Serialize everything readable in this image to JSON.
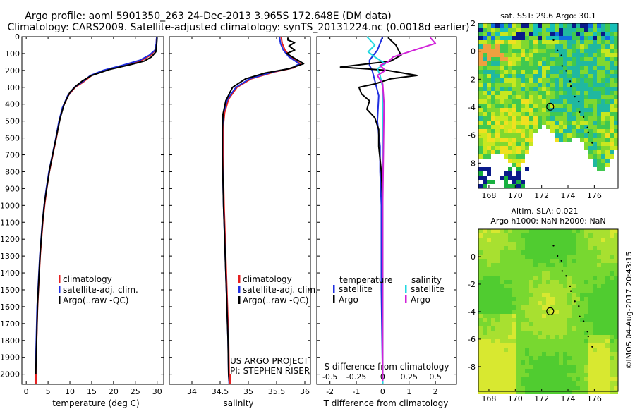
{
  "header": {
    "line1": "Argo profile: aoml 5901350_263 24-Dec-2013 3.965S 172.648E (DM data)",
    "line2": "Climatology: CARS2009. Satellite-adjusted climatology: synTS_20131224.nc (0.0018d earlier)"
  },
  "colors": {
    "climatology": "#e52020",
    "satellite": "#1f2fe0",
    "argo": "#000000",
    "cyan": "#22d8e0",
    "magenta": "#d021d8"
  },
  "chart_data": [
    {
      "type": "line",
      "id": "temperature",
      "xlabel": "temperature (deg C)",
      "xlim": [
        -1,
        31.5
      ],
      "ylim": [
        2060,
        0
      ],
      "xticks": [
        0,
        5,
        10,
        15,
        20,
        25,
        30
      ],
      "yticks": [
        0,
        100,
        200,
        300,
        400,
        500,
        600,
        700,
        800,
        900,
        1000,
        1100,
        1200,
        1300,
        1400,
        1500,
        1600,
        1700,
        1800,
        1900,
        2000
      ],
      "legend": [
        "climatology",
        "satellite-adj. clim.",
        "Argo(..raw -QC)"
      ],
      "series": [
        {
          "name": "climatology",
          "color": "#e52020",
          "points": [
            [
              29.9,
              0
            ],
            [
              29.8,
              40
            ],
            [
              29.6,
              80
            ],
            [
              28.5,
              110
            ],
            [
              26.5,
              140
            ],
            [
              22.5,
              170
            ],
            [
              18,
              200
            ],
            [
              15,
              230
            ],
            [
              13,
              270
            ],
            [
              11.2,
              300
            ],
            [
              9.6,
              350
            ],
            [
              8.4,
              420
            ],
            [
              7.6,
              500
            ],
            [
              6.9,
              600
            ],
            [
              6.1,
              700
            ],
            [
              5.3,
              800
            ],
            [
              4.7,
              900
            ],
            [
              4.2,
              1000
            ],
            [
              3.8,
              1100
            ],
            [
              3.5,
              1200
            ],
            [
              3.2,
              1300
            ],
            [
              3,
              1400
            ],
            [
              2.8,
              1500
            ],
            [
              2.6,
              1600
            ],
            [
              2.5,
              1700
            ],
            [
              2.4,
              1800
            ],
            [
              2.3,
              1900
            ],
            [
              2.2,
              2000
            ],
            [
              2.15,
              2060
            ]
          ]
        },
        {
          "name": "satellite-adj. clim.",
          "color": "#1f2fe0",
          "points": [
            [
              29.9,
              0
            ],
            [
              29.8,
              40
            ],
            [
              29.5,
              80
            ],
            [
              28.2,
              110
            ],
            [
              26,
              140
            ],
            [
              22,
              170
            ],
            [
              17.6,
              200
            ],
            [
              14.7,
              230
            ],
            [
              12.8,
              270
            ],
            [
              11,
              300
            ],
            [
              9.5,
              350
            ],
            [
              8.3,
              420
            ],
            [
              7.5,
              500
            ],
            [
              6.8,
              600
            ],
            [
              6,
              700
            ],
            [
              5.2,
              800
            ],
            [
              4.6,
              900
            ],
            [
              4.1,
              1000
            ],
            [
              3.7,
              1100
            ],
            [
              3.4,
              1200
            ],
            [
              3.1,
              1300
            ],
            [
              2.9,
              1400
            ],
            [
              2.7,
              1500
            ],
            [
              2.5,
              1600
            ],
            [
              2.4,
              1700
            ],
            [
              2.3,
              1800
            ],
            [
              2.2,
              1900
            ],
            [
              2.15,
              2000
            ],
            [
              2.1,
              2060
            ]
          ]
        },
        {
          "name": "Argo(..raw -QC)",
          "color": "#000000",
          "points": [
            [
              30,
              5
            ],
            [
              29.9,
              40
            ],
            [
              29.7,
              90
            ],
            [
              28.7,
              120
            ],
            [
              27,
              145
            ],
            [
              24,
              165
            ],
            [
              19,
              195
            ],
            [
              15,
              230
            ],
            [
              13,
              260
            ],
            [
              11.5,
              290
            ],
            [
              10,
              330
            ],
            [
              8.7,
              400
            ],
            [
              7.8,
              480
            ],
            [
              7,
              580
            ],
            [
              6.2,
              680
            ],
            [
              5.4,
              780
            ],
            [
              4.8,
              880
            ],
            [
              4.2,
              980
            ],
            [
              3.8,
              1080
            ],
            [
              3.5,
              1180
            ],
            [
              3.2,
              1280
            ],
            [
              3,
              1380
            ],
            [
              2.8,
              1480
            ],
            [
              2.6,
              1580
            ],
            [
              2.5,
              1680
            ],
            [
              2.4,
              1780
            ],
            [
              2.3,
              1880
            ],
            [
              2.2,
              1980
            ],
            [
              2.2,
              2040
            ]
          ]
        }
      ]
    },
    {
      "type": "line",
      "id": "salinity",
      "xlabel": "salinity",
      "xlim": [
        33.6,
        36.1
      ],
      "ylim": [
        2060,
        0
      ],
      "xticks": [
        34,
        34.5,
        35,
        35.5,
        36
      ],
      "legend": [
        "climatology",
        "satellite-adj. clim.",
        "Argo(..raw -QC)"
      ],
      "annotations": [
        "US ARGO PROJECT",
        "PI: STEPHEN RISER"
      ],
      "series": [
        {
          "name": "climatology",
          "color": "#e52020",
          "points": [
            [
              35.58,
              0
            ],
            [
              35.6,
              40
            ],
            [
              35.65,
              80
            ],
            [
              35.75,
              120
            ],
            [
              35.92,
              160
            ],
            [
              35.8,
              185
            ],
            [
              35.45,
              210
            ],
            [
              35.05,
              250
            ],
            [
              34.8,
              300
            ],
            [
              34.65,
              370
            ],
            [
              34.58,
              450
            ],
            [
              34.55,
              550
            ],
            [
              34.55,
              700
            ],
            [
              34.56,
              850
            ],
            [
              34.57,
              1000
            ],
            [
              34.59,
              1200
            ],
            [
              34.61,
              1400
            ],
            [
              34.63,
              1600
            ],
            [
              34.65,
              1800
            ],
            [
              34.66,
              2000
            ],
            [
              34.67,
              2060
            ]
          ]
        },
        {
          "name": "satellite-adj. clim.",
          "color": "#1f2fe0",
          "points": [
            [
              35.55,
              0
            ],
            [
              35.57,
              40
            ],
            [
              35.62,
              80
            ],
            [
              35.72,
              120
            ],
            [
              35.9,
              160
            ],
            [
              35.78,
              185
            ],
            [
              35.42,
              210
            ],
            [
              35.02,
              250
            ],
            [
              34.78,
              300
            ],
            [
              34.63,
              370
            ],
            [
              34.56,
              450
            ],
            [
              34.54,
              550
            ],
            [
              34.54,
              700
            ],
            [
              34.55,
              850
            ],
            [
              34.56,
              1000
            ],
            [
              34.58,
              1200
            ],
            [
              34.6,
              1400
            ],
            [
              34.62,
              1600
            ],
            [
              34.64,
              1800
            ],
            [
              34.65,
              2000
            ],
            [
              34.66,
              2060
            ]
          ]
        },
        {
          "name": "Argo(..raw -QC)",
          "color": "#000000",
          "points": [
            [
              35.7,
              5
            ],
            [
              35.7,
              20
            ],
            [
              35.82,
              35
            ],
            [
              35.72,
              55
            ],
            [
              35.82,
              80
            ],
            [
              35.68,
              100
            ],
            [
              35.8,
              125
            ],
            [
              35.98,
              160
            ],
            [
              35.72,
              190
            ],
            [
              35.3,
              215
            ],
            [
              34.95,
              250
            ],
            [
              34.72,
              300
            ],
            [
              34.6,
              380
            ],
            [
              34.55,
              460
            ],
            [
              34.54,
              560
            ],
            [
              34.54,
              700
            ],
            [
              34.55,
              850
            ],
            [
              34.56,
              1000
            ],
            [
              34.58,
              1200
            ],
            [
              34.6,
              1400
            ],
            [
              34.62,
              1600
            ],
            [
              34.64,
              1800
            ],
            [
              34.65,
              2000
            ],
            [
              34.66,
              2040
            ]
          ]
        }
      ]
    },
    {
      "type": "line",
      "id": "differences",
      "xlabel": "T difference from climatology",
      "xlabel_top": "S difference from climatology",
      "xlim": [
        -2.5,
        2.8
      ],
      "ylim": [
        2060,
        0
      ],
      "xticks": [
        -2,
        -1,
        0,
        1,
        2
      ],
      "xticks_top_labels": [
        "-0.5",
        "-0.25",
        "0",
        "0.25",
        "0.5"
      ],
      "xticks_top_positions": [
        -2,
        -1,
        0,
        1,
        2
      ],
      "legend_left_title": "temperature",
      "legend_right_title": "salinity",
      "legend": [
        "satellite",
        "Argo",
        "satellite",
        "Argo"
      ],
      "series": [
        {
          "name": "temperature satellite",
          "color": "#1f2fe0",
          "points": [
            [
              0,
              0
            ],
            [
              -0.2,
              80
            ],
            [
              -0.5,
              140
            ],
            [
              -0.5,
              170
            ],
            [
              -0.4,
              200
            ],
            [
              -0.3,
              260
            ],
            [
              -0.15,
              350
            ],
            [
              -0.2,
              500
            ],
            [
              -0.1,
              650
            ],
            [
              -0.1,
              800
            ],
            [
              -0.05,
              1000
            ],
            [
              -0.05,
              1500
            ],
            [
              0,
              2060
            ]
          ]
        },
        {
          "name": "temperature Argo",
          "color": "#000000",
          "points": [
            [
              0.2,
              5
            ],
            [
              0.5,
              50
            ],
            [
              0.7,
              110
            ],
            [
              0.3,
              145
            ],
            [
              -1.6,
              180
            ],
            [
              0.2,
              200
            ],
            [
              1.3,
              230
            ],
            [
              0.3,
              250
            ],
            [
              -0.3,
              280
            ],
            [
              -0.9,
              300
            ],
            [
              -0.8,
              340
            ],
            [
              -0.5,
              380
            ],
            [
              -0.6,
              430
            ],
            [
              -0.3,
              480
            ],
            [
              -0.15,
              550
            ],
            [
              -0.15,
              650
            ],
            [
              -0.05,
              800
            ],
            [
              0,
              1000
            ],
            [
              0,
              2040
            ]
          ]
        },
        {
          "name": "salinity satellite",
          "color": "#22d8e0",
          "points": [
            [
              -0.6,
              0
            ],
            [
              -0.3,
              50
            ],
            [
              -0.55,
              90
            ],
            [
              -0.3,
              120
            ],
            [
              0.1,
              160
            ],
            [
              -0.2,
              190
            ],
            [
              -0.1,
              230
            ],
            [
              0,
              300
            ],
            [
              0,
              2060
            ]
          ]
        },
        {
          "name": "salinity Argo",
          "color": "#d021d8",
          "points": [
            [
              1.8,
              5
            ],
            [
              2,
              40
            ],
            [
              1.2,
              80
            ],
            [
              0.4,
              120
            ],
            [
              0.2,
              150
            ],
            [
              -0.1,
              170
            ],
            [
              0.1,
              200
            ],
            [
              -0.2,
              230
            ],
            [
              0,
              280
            ],
            [
              0.05,
              400
            ],
            [
              0,
              1000
            ],
            [
              0,
              2040
            ]
          ]
        }
      ]
    },
    {
      "type": "heatmap",
      "id": "sst_map",
      "title": "sat. SST: 29.6 Argo: 30.1",
      "xlim": [
        167.2,
        177.8
      ],
      "ylim": [
        -9.8,
        2
      ],
      "xticks": [
        168,
        170,
        172,
        174,
        176
      ],
      "yticks": [
        2,
        0,
        -2,
        -4,
        -6,
        -8
      ],
      "marker": [
        172.648,
        -3.965
      ]
    },
    {
      "type": "heatmap",
      "id": "sla_map",
      "title_line1": "Altim. SLA: 0.021",
      "title_line2": "Argo h1000: NaN h2000: NaN",
      "xlim": [
        167.2,
        177.8
      ],
      "ylim": [
        -9.8,
        2
      ],
      "xticks": [
        168,
        170,
        172,
        174,
        176
      ],
      "yticks": [
        0,
        -2,
        -4,
        -6,
        -8
      ],
      "marker": [
        172.648,
        -3.965
      ]
    }
  ],
  "footer": {
    "stamp": "©IMOS 04-Aug-2017 20:43:15"
  }
}
